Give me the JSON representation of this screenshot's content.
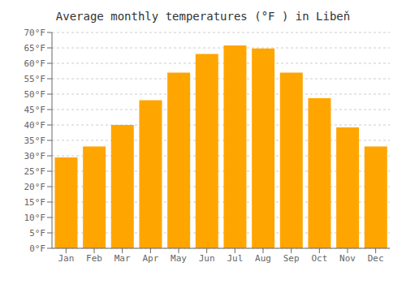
{
  "chart_data": {
    "type": "bar",
    "title": "Average monthly temperatures (°F ) in Libeň",
    "categories": [
      "Jan",
      "Feb",
      "Mar",
      "Apr",
      "May",
      "Jun",
      "Jul",
      "Aug",
      "Sep",
      "Oct",
      "Nov",
      "Dec"
    ],
    "values": [
      29.5,
      33.0,
      40.0,
      48.0,
      57.0,
      63.0,
      65.8,
      64.8,
      57.0,
      48.7,
      39.2,
      33.0
    ],
    "color": "#FFA500",
    "ylim": [
      0,
      70
    ],
    "yticks": [
      {
        "value": 0,
        "label": "0°F"
      },
      {
        "value": 5,
        "label": "5°F"
      },
      {
        "value": 10,
        "label": "10°F"
      },
      {
        "value": 15,
        "label": "15°F"
      },
      {
        "value": 20,
        "label": "20°F"
      },
      {
        "value": 25,
        "label": "25°F"
      },
      {
        "value": 30,
        "label": "30°F"
      },
      {
        "value": 35,
        "label": "35°F"
      },
      {
        "value": 40,
        "label": "40°F"
      },
      {
        "value": 45,
        "label": "45°F"
      },
      {
        "value": 50,
        "label": "50°F"
      },
      {
        "value": 55,
        "label": "55°F"
      },
      {
        "value": 60,
        "label": "60°F"
      },
      {
        "value": 65,
        "label": "65°F"
      },
      {
        "value": 70,
        "label": "70°F"
      }
    ],
    "grid": true
  }
}
